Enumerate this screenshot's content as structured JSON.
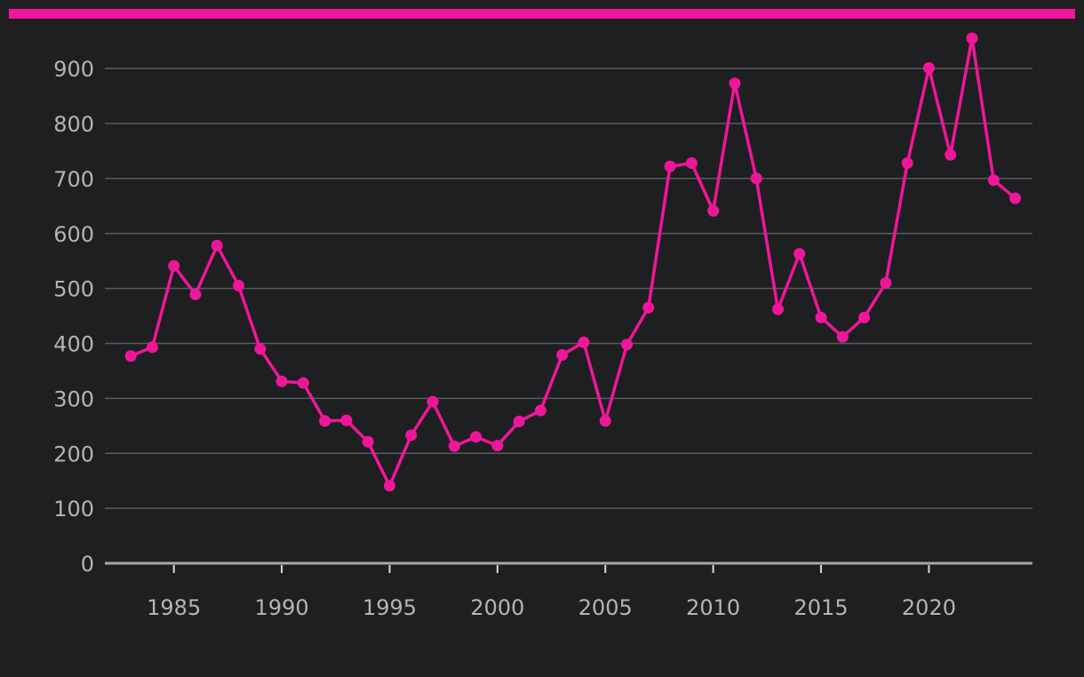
{
  "colors": {
    "background": "#1e1f21",
    "accent": "#f0169a",
    "grid": "#5a5b5e",
    "text": "#b4b4b6"
  },
  "chart_data": {
    "type": "line",
    "title": "",
    "xlabel": "",
    "ylabel": "",
    "xlim": [
      1981.8,
      2024.8
    ],
    "ylim": [
      0,
      960
    ],
    "x_ticks": [
      1985,
      1990,
      1995,
      2000,
      2005,
      2010,
      2015,
      2020
    ],
    "y_ticks": [
      0,
      100,
      200,
      300,
      400,
      500,
      600,
      700,
      800,
      900
    ],
    "grid": true,
    "legend": "none",
    "series": [
      {
        "color": "#f0169a",
        "x": [
          1983,
          1984,
          1985,
          1986,
          1987,
          1988,
          1989,
          1990,
          1991,
          1992,
          1993,
          1994,
          1995,
          1996,
          1997,
          1998,
          1999,
          2000,
          2001,
          2002,
          2003,
          2004,
          2005,
          2006,
          2007,
          2008,
          2009,
          2010,
          2011,
          2012,
          2013,
          2014,
          2015,
          2016,
          2017,
          2018,
          2019,
          2020,
          2021,
          2022,
          2023,
          2024
        ],
        "y": [
          377,
          393,
          541,
          489,
          578,
          505,
          390,
          331,
          328,
          259,
          260,
          221,
          141,
          233,
          294,
          213,
          230,
          214,
          258,
          278,
          379,
          402,
          259,
          398,
          465,
          722,
          728,
          641,
          873,
          700,
          462,
          563,
          447,
          412,
          447,
          510,
          728,
          901,
          743,
          955,
          697,
          664
        ]
      }
    ]
  }
}
